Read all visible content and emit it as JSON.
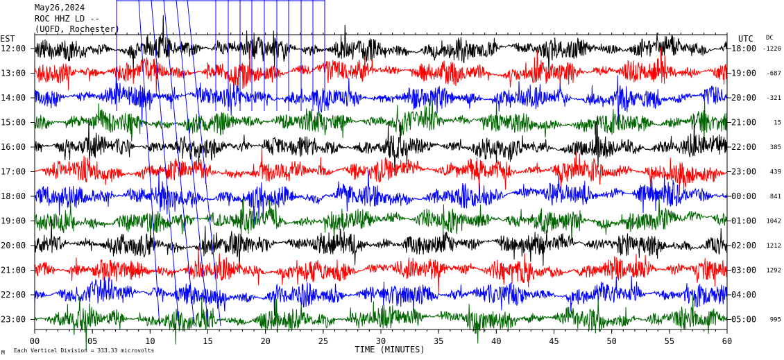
{
  "header": {
    "date": "May26,2024",
    "station": "ROC HHZ LD --",
    "location": "(UOFD, Rochester)"
  },
  "left_axis_title": "EST",
  "right_axis_title": "UTC",
  "dc_title": "DC",
  "footer_note": "Each Vertical Division = 333.33 microvolts",
  "footer_glyph": "M",
  "chart_data": {
    "type": "line",
    "title": "",
    "xlabel": "TIME (MINUTES)",
    "ylabel": "",
    "xlim": [
      0,
      60
    ],
    "x_ticks": [
      "00",
      "05",
      "10",
      "15",
      "20",
      "25",
      "30",
      "35",
      "40",
      "45",
      "50",
      "55",
      "60"
    ],
    "grid": false,
    "legend": "none",
    "trace_colors": [
      "#000000",
      "#ff0000",
      "#0000ff",
      "#006400"
    ],
    "rows": [
      {
        "est": "12:00",
        "utc": "18:00",
        "dc": "-1220"
      },
      {
        "est": "13:00",
        "utc": "19:00",
        "dc": "-687"
      },
      {
        "est": "14:00",
        "utc": "20:00",
        "dc": "-321"
      },
      {
        "est": "15:00",
        "utc": "21:00",
        "dc": "15"
      },
      {
        "est": "16:00",
        "utc": "22:00",
        "dc": "385"
      },
      {
        "est": "17:00",
        "utc": "23:00",
        "dc": "439"
      },
      {
        "est": "18:00",
        "utc": "00:00",
        "dc": "841"
      },
      {
        "est": "19:00",
        "utc": "01:00",
        "dc": "1042"
      },
      {
        "est": "20:00",
        "utc": "02:00",
        "dc": "1212"
      },
      {
        "est": "21:00",
        "utc": "03:00",
        "dc": "1292"
      },
      {
        "est": "22:00",
        "utc": "04:00",
        "dc": ""
      },
      {
        "est": "23:00",
        "utc": "05:00",
        "dc": "995"
      }
    ]
  }
}
